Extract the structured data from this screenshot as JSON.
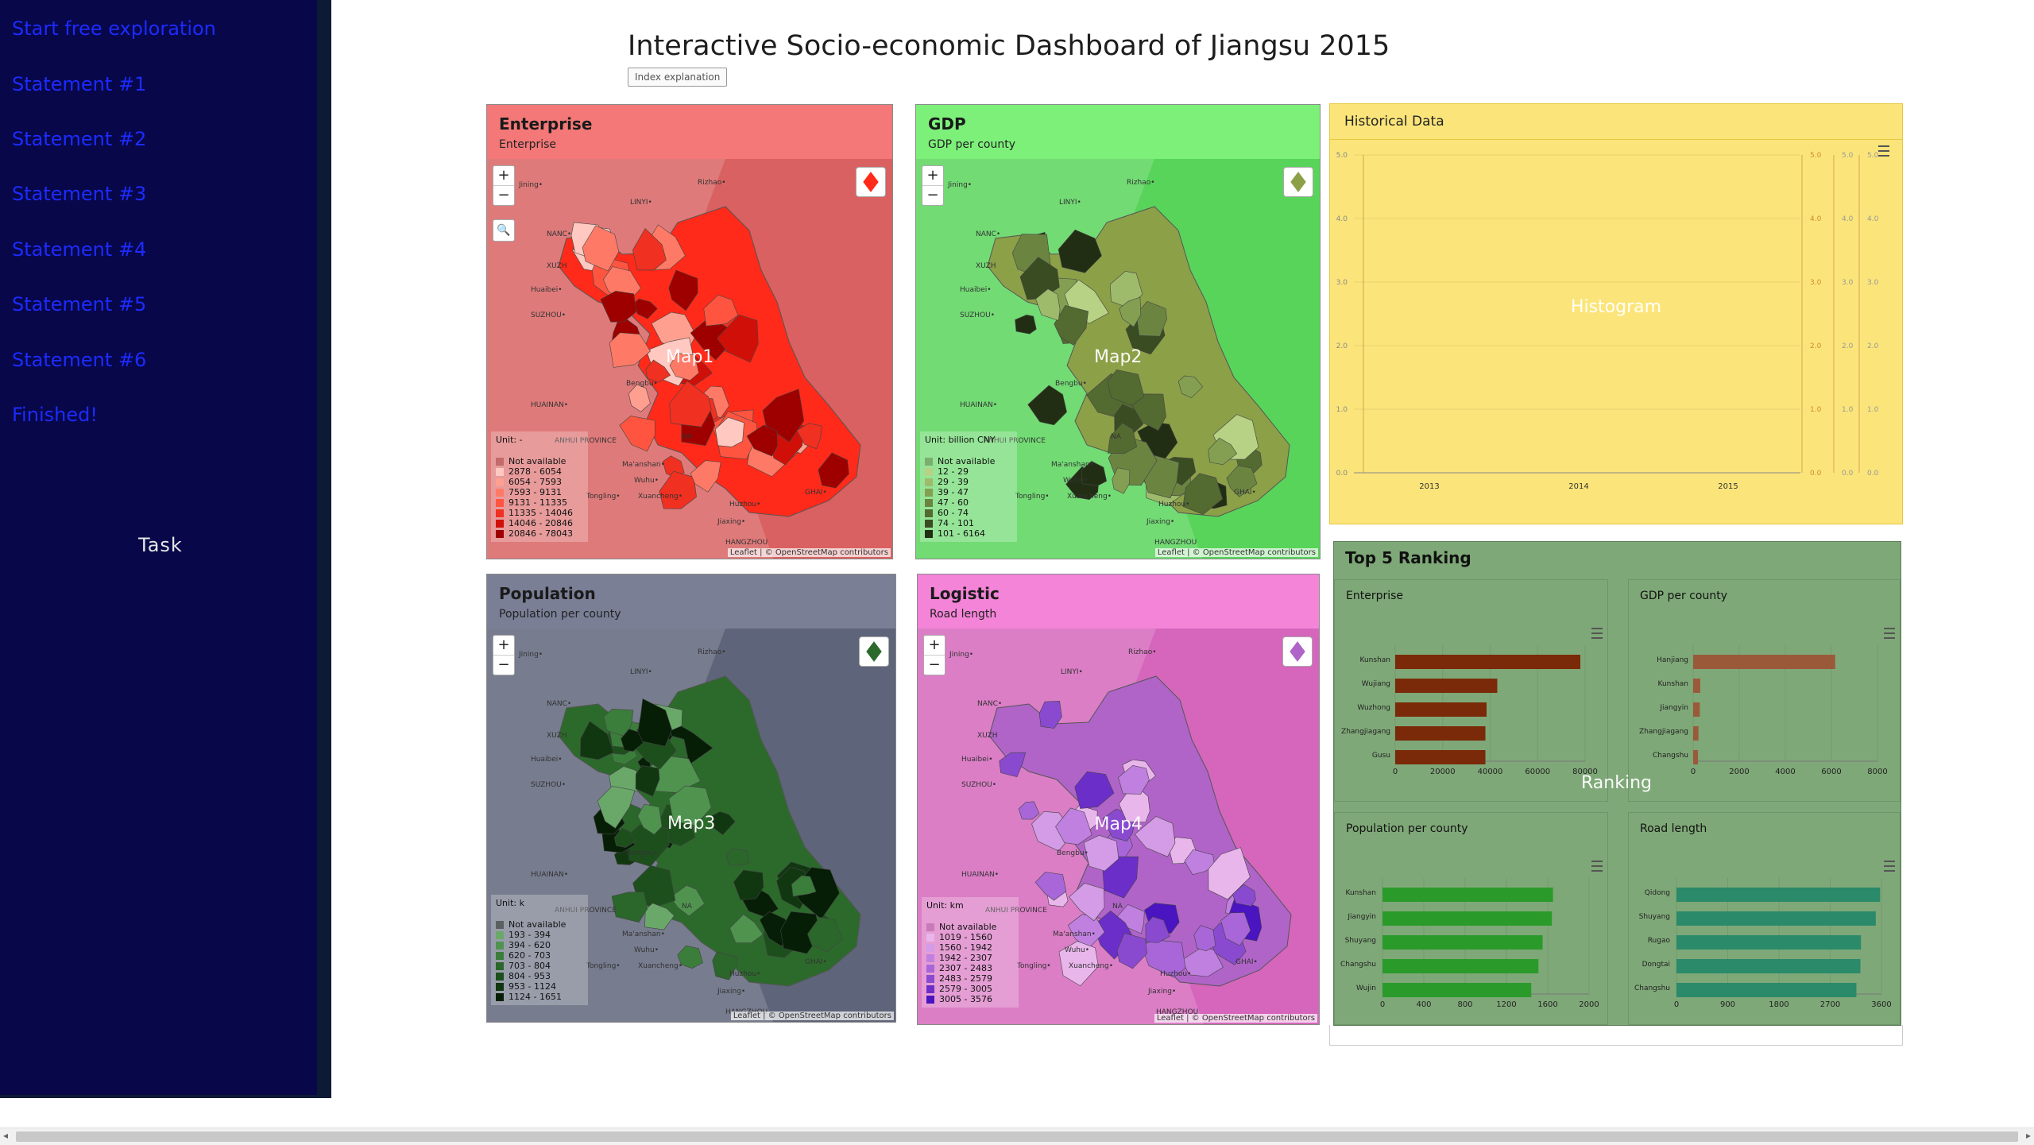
{
  "sidebar": {
    "items": [
      {
        "label": "Start free exploration"
      },
      {
        "label": "Statement #1"
      },
      {
        "label": "Statement #2"
      },
      {
        "label": "Statement #3"
      },
      {
        "label": "Statement #4"
      },
      {
        "label": "Statement #5"
      },
      {
        "label": "Statement #6"
      },
      {
        "label": "Finished!"
      }
    ],
    "task_label": "Task",
    "color": "#07074a",
    "link_color": "#1d2bff"
  },
  "header": {
    "title": "Interactive Socio-economic Dashboard of Jiangsu 2015",
    "index_button": "Index explanation"
  },
  "maps": [
    {
      "title": "Enterprise",
      "subtitle": "Enterprise",
      "overlay": "Map1",
      "bg": "#f47878",
      "map_bg": "#d96161",
      "base": "#ff2a1a",
      "dark": "#a80000",
      "unit": "Unit: -",
      "legend": [
        "Not available",
        "2878 - 6054",
        "6054 - 7593",
        "7593 - 9131",
        "9131 - 11335",
        "11335 - 14046",
        "14046 - 20846",
        "20846 - 78043"
      ],
      "colors": [
        "#c46a6a",
        "#ffc8c0",
        "#ff9f90",
        "#ff7a66",
        "#ff5540",
        "#f03020",
        "#d01008",
        "#9e0000"
      ]
    },
    {
      "title": "GDP",
      "subtitle": "GDP per county",
      "overlay": "Map2",
      "bg": "#7df07a",
      "map_bg": "#58d45a",
      "base": "#8ca048",
      "dark": "#1d2a12",
      "unit": "Unit: billion CNY",
      "legend": [
        "Not available",
        "12 - 29",
        "29 - 39",
        "39 - 47",
        "47 - 60",
        "60 - 74",
        "74 - 101",
        "101 - 6164"
      ],
      "colors": [
        "#79b070",
        "#b7d285",
        "#9dbb6a",
        "#849f52",
        "#6b8541",
        "#536a31",
        "#3a4c22",
        "#222e14"
      ]
    },
    {
      "title": "Population",
      "subtitle": "Population per county",
      "overlay": "Map3",
      "bg": "#7a7f96",
      "map_bg": "#5e6479",
      "base": "#2c6a2c",
      "dark": "#0a1f0a",
      "unit": "Unit: k",
      "legend": [
        "Not available",
        "193 - 394",
        "394 - 620",
        "620 - 703",
        "703 - 804",
        "804 - 953",
        "953 - 1124",
        "1124 - 1651"
      ],
      "colors": [
        "#5a6060",
        "#6aa86a",
        "#4f934f",
        "#3b7d3b",
        "#2b662b",
        "#1d4f1d",
        "#113711",
        "#061e06"
      ]
    },
    {
      "title": "Logistic",
      "subtitle": "Road length",
      "overlay": "Map4",
      "bg": "#f484d8",
      "map_bg": "#d566bc",
      "base": "#b064c8",
      "dark": "#3a10b8",
      "unit": "Unit: km",
      "legend": [
        "Not available",
        "1019 - 1560",
        "1560 - 1942",
        "1942 - 2307",
        "2307 - 2483",
        "2483 - 2579",
        "2579 - 3005",
        "3005 - 3576"
      ],
      "colors": [
        "#c87ab8",
        "#e9b6ec",
        "#d49ce6",
        "#c080e0",
        "#a866d8",
        "#8a4ad0",
        "#6c2ec8",
        "#4a14c0"
      ]
    }
  ],
  "map_places": {
    "zoom_in": "+",
    "zoom_out": "−",
    "cities": [
      "Jining•",
      "Rizhao•",
      "LINYI•",
      "XUZH",
      "Huaibei•",
      "SUZHOU•",
      "Bengbu•",
      "HUAINAN•",
      "ANHUI PROVINCE",
      "Ma'anshan•",
      "Wuhu•",
      "Xuancheng•",
      "Tongling•",
      "Huzhou•",
      "Jiaxing•",
      "HANGZHOU",
      "NANC•",
      "NA",
      "GHAI•"
    ],
    "attribution": "Leaflet | © OpenStreetMap contributors"
  },
  "historical": {
    "title": "Historical Data",
    "overlay": "Histogram",
    "x_ticks": [
      "2013",
      "2014",
      "2015"
    ],
    "y_ticks": [
      "0.0",
      "1.0",
      "2.0",
      "3.0",
      "4.0",
      "5.0"
    ],
    "bg": "#fbe57a"
  },
  "ranking": {
    "title": "Top 5 Ranking",
    "overlay": "Ranking",
    "bg": "#7fa878"
  },
  "chart_data": [
    {
      "type": "bar",
      "title": "Enterprise",
      "categories": [
        "Kunshan",
        "Wujiang",
        "Wuzhong",
        "Zhangjiagang",
        "Gusu"
      ],
      "values": [
        78000,
        43000,
        38500,
        38000,
        38000
      ],
      "x_ticks": [
        "0",
        "20000",
        "40000",
        "60000",
        "80000"
      ],
      "xlim": [
        0,
        80000
      ],
      "color": "#7a2a08"
    },
    {
      "type": "bar",
      "title": "GDP per county",
      "categories": [
        "Hanjiang",
        "Kunshan",
        "Jiangyin",
        "Zhangjiagang",
        "Changshu"
      ],
      "values": [
        6164,
        310,
        290,
        230,
        210
      ],
      "x_ticks": [
        "0",
        "2000",
        "4000",
        "6000",
        "8000"
      ],
      "xlim": [
        0,
        8000
      ],
      "color": "#9a5a3a"
    },
    {
      "type": "bar",
      "title": "Population per county",
      "categories": [
        "Kunshan",
        "Jiangyin",
        "Shuyang",
        "Changshu",
        "Wujin"
      ],
      "values": [
        1651,
        1640,
        1550,
        1510,
        1440
      ],
      "x_ticks": [
        "0",
        "400",
        "800",
        "1200",
        "1600",
        "2000"
      ],
      "xlim": [
        0,
        2000
      ],
      "color": "#2a9a2a"
    },
    {
      "type": "bar",
      "title": "Road length",
      "categories": [
        "Qidong",
        "Shuyang",
        "Rugao",
        "Dongtai",
        "Changshu"
      ],
      "values": [
        3576,
        3500,
        3240,
        3230,
        3160
      ],
      "x_ticks": [
        "0",
        "900",
        "1800",
        "2700",
        "3600"
      ],
      "xlim": [
        0,
        3600
      ],
      "color": "#2a8a6a"
    }
  ]
}
